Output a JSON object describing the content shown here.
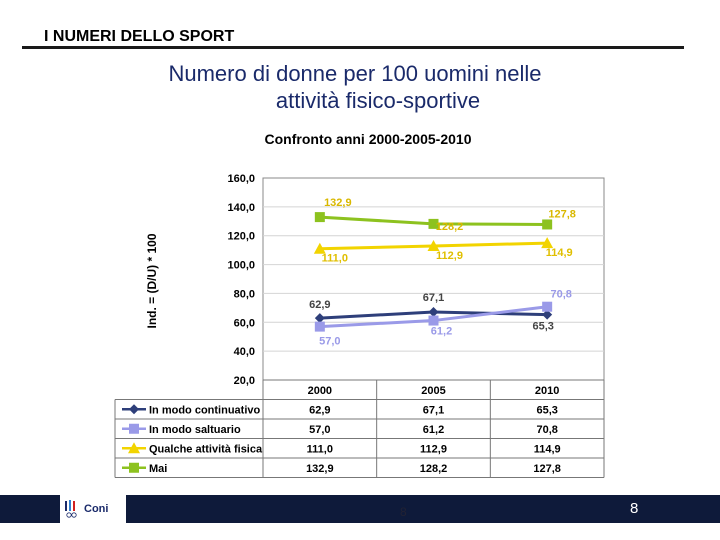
{
  "header": {
    "section": "I NUMERI DELLO SPORT",
    "title_line1": "Numero di donne per 100 uomini nelle",
    "title_line2": "attività fisico-sportive"
  },
  "footer": {
    "brand": "Coni",
    "center_number": "8",
    "page_number": "8"
  },
  "colors": {
    "continuativo": "#2e3f7a",
    "saltuario": "#9a9ae8",
    "qualche": "#f2d400",
    "mai": "#8dc21f",
    "footer_bar": "#0e1a3a",
    "title": "#1a2a6a"
  },
  "chart_data": {
    "type": "line",
    "title": "Confronto anni  2000-2005-2010",
    "ylabel": "Ind. = (D/U) * 100",
    "xlabel": "",
    "categories": [
      "2000",
      "2005",
      "2010"
    ],
    "ylim": [
      20,
      160
    ],
    "yticks": [
      "160,0",
      "140,0",
      "120,0",
      "100,0",
      "80,0",
      "60,0",
      "40,0",
      "20,0"
    ],
    "grid": true,
    "legend": "data-table-below",
    "series": [
      {
        "name": "In modo continuativo",
        "marker": "diamond",
        "color": "#2e3f7a",
        "values": [
          62.9,
          67.1,
          65.3
        ],
        "labels": [
          "62,9",
          "67,1",
          "65,3"
        ]
      },
      {
        "name": "In modo saltuario",
        "marker": "square",
        "color": "#9a9ae8",
        "values": [
          57.0,
          61.2,
          70.8
        ],
        "labels": [
          "57,0",
          "61,2",
          "70,8"
        ]
      },
      {
        "name": "Qualche attività fisica",
        "marker": "triangle",
        "color": "#f2d400",
        "values": [
          111.0,
          112.9,
          114.9
        ],
        "labels": [
          "111,0",
          "112,9",
          "114,9"
        ]
      },
      {
        "name": "Mai",
        "marker": "square",
        "color": "#8dc21f",
        "values": [
          132.9,
          128.2,
          127.8
        ],
        "labels": [
          "132,9",
          "128,2",
          "127,8"
        ]
      }
    ]
  }
}
